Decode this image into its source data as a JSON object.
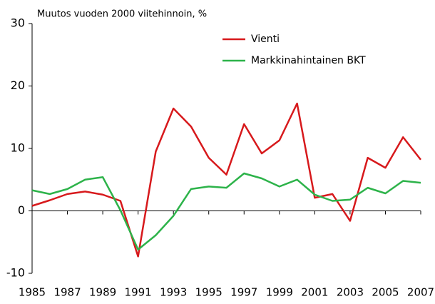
{
  "chart_data": {
    "type": "line",
    "y_label": "Muutos vuoden 2000 viitehinnoin, %",
    "x": [
      1985,
      1986,
      1987,
      1988,
      1989,
      1990,
      1991,
      1992,
      1993,
      1994,
      1995,
      1996,
      1997,
      1998,
      1999,
      2000,
      2001,
      2002,
      2003,
      2004,
      2005,
      2006,
      2007
    ],
    "series": [
      {
        "name": "Vienti",
        "color": "#d7191c",
        "values": [
          0.8,
          1.7,
          2.7,
          3.1,
          2.6,
          1.6,
          -7.3,
          9.5,
          16.4,
          13.5,
          8.5,
          5.8,
          13.9,
          9.2,
          11.3,
          17.2,
          2.1,
          2.7,
          -1.6,
          8.5,
          6.9,
          11.8,
          8.2
        ]
      },
      {
        "name": "Markkinahintainen BKT",
        "color": "#2db34a",
        "values": [
          3.3,
          2.7,
          3.5,
          5.0,
          5.4,
          0.1,
          -6.2,
          -3.9,
          -0.8,
          3.5,
          3.9,
          3.7,
          6.0,
          5.2,
          3.9,
          5.0,
          2.6,
          1.6,
          1.8,
          3.7,
          2.8,
          4.8,
          4.5
        ]
      }
    ],
    "xlim": [
      1985,
      2007
    ],
    "xticks": [
      1985,
      1987,
      1989,
      1991,
      1993,
      1995,
      1997,
      1999,
      2001,
      2003,
      2005,
      2007
    ],
    "ylim": [
      -10,
      30
    ],
    "yticks": [
      -10,
      0,
      10,
      20,
      30
    ],
    "legend": "upper right"
  }
}
